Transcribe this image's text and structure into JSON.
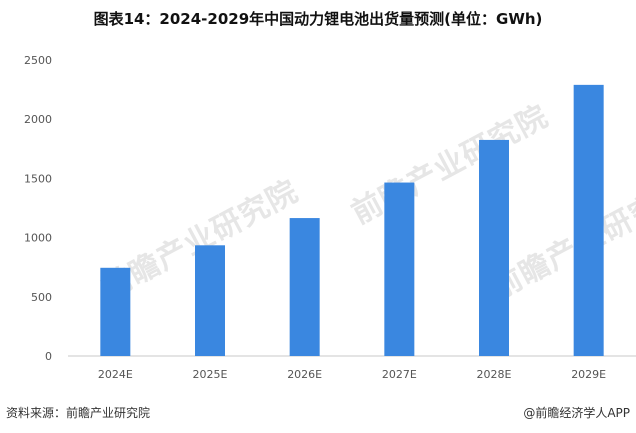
{
  "title": "图表14：2024-2029年中国动力锂电池出货量预测(单位：GWh)",
  "watermark": "前瞻产业研究院",
  "footer": {
    "source": "资料来源：前瞻产业研究院",
    "credit": "@前瞻经济学人APP"
  },
  "colors": {
    "bar": "#3a87e0",
    "axis": "#c8c8c8",
    "tick_text": "#555555"
  },
  "chart_data": {
    "type": "bar",
    "title": "图表14：2024-2029年中国动力锂电池出货量预测(单位：GWh)",
    "categories": [
      "2024E",
      "2025E",
      "2026E",
      "2027E",
      "2028E",
      "2029E"
    ],
    "values": [
      745,
      935,
      1165,
      1465,
      1825,
      2290
    ],
    "ylim": [
      0,
      2500
    ],
    "yticks": [
      0,
      500,
      1000,
      1500,
      2000,
      2500
    ],
    "grid": false,
    "legend": "none"
  }
}
